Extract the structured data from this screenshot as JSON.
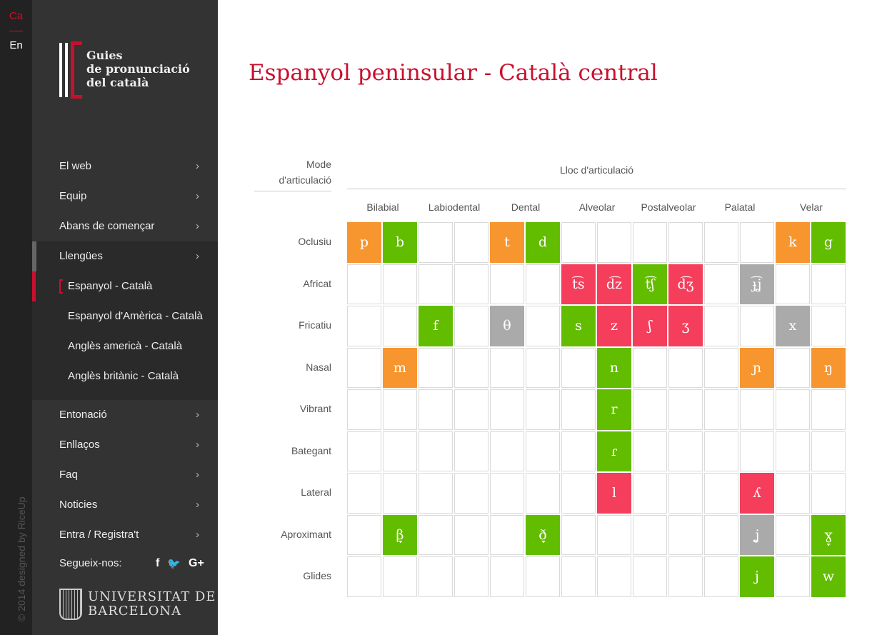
{
  "languages": [
    {
      "label": "Ca",
      "active": true
    },
    {
      "label": "En",
      "active": false
    }
  ],
  "copyright": "© 2014 designed by RiceUp",
  "logo": {
    "line1": "Guies",
    "line2": "de pronunciació",
    "line3": "del català"
  },
  "nav": [
    {
      "label": "El web"
    },
    {
      "label": "Equip"
    },
    {
      "label": "Abans de començar"
    },
    {
      "label": "Llengües"
    }
  ],
  "subnav": [
    {
      "label": "Espanyol - Català",
      "active": true
    },
    {
      "label": "Espanyol d'Amèrica - Català"
    },
    {
      "label": "Anglès americà - Català"
    },
    {
      "label": "Anglès britànic - Català"
    }
  ],
  "nav2": [
    {
      "label": "Entonació"
    },
    {
      "label": "Enllaços"
    },
    {
      "label": "Faq"
    },
    {
      "label": "Noticies"
    },
    {
      "label": "Entra / Registra't"
    }
  ],
  "follow": "Segueix-nos:",
  "social": {
    "facebook": "f",
    "twitter": "🐦",
    "google": "G+"
  },
  "university": {
    "line1": "UNIVERSITAT DE",
    "line2": "BARCELONA"
  },
  "title": "Espanyol peninsular - Català central",
  "table": {
    "mode_label": "Mode d'articulació",
    "place_label": "Lloc d'articulació",
    "columns": [
      "Bilabial",
      "Labiodental",
      "Dental",
      "Alveolar",
      "Postalveolar",
      "Palatal",
      "Velar"
    ],
    "colors": {
      "o": "#f7962f",
      "g": "#62bd00",
      "r": "#f43e5c",
      "y": "#aaaaaa"
    },
    "rows": [
      {
        "label": "Oclusiu",
        "cells": [
          [
            "p",
            "o"
          ],
          [
            "b",
            "g"
          ],
          null,
          null,
          [
            "t",
            "o"
          ],
          [
            "d",
            "g"
          ],
          null,
          null,
          null,
          null,
          null,
          null,
          [
            "k",
            "o"
          ],
          [
            "g",
            "g"
          ]
        ]
      },
      {
        "label": "Africat",
        "cells": [
          null,
          null,
          null,
          null,
          null,
          null,
          [
            "t͡s",
            "r"
          ],
          [
            "d͡z",
            "r"
          ],
          [
            "t͡ʃ",
            "g"
          ],
          [
            "d͡ʒ",
            "r"
          ],
          null,
          [
            "ɟ͡ʝ",
            "y"
          ],
          null,
          null
        ]
      },
      {
        "label": "Fricatiu",
        "cells": [
          null,
          null,
          [
            "f",
            "g"
          ],
          null,
          [
            "θ",
            "y"
          ],
          null,
          [
            "s",
            "g"
          ],
          [
            "z",
            "r"
          ],
          [
            "ʃ",
            "r"
          ],
          [
            "ʒ",
            "r"
          ],
          null,
          null,
          [
            "x",
            "y"
          ],
          null
        ]
      },
      {
        "label": "Nasal",
        "cells": [
          null,
          [
            "m",
            "o"
          ],
          null,
          null,
          null,
          null,
          null,
          [
            "n",
            "g"
          ],
          null,
          null,
          null,
          [
            "ɲ",
            "o"
          ],
          null,
          [
            "ŋ",
            "o"
          ]
        ]
      },
      {
        "label": "Vibrant",
        "cells": [
          null,
          null,
          null,
          null,
          null,
          null,
          null,
          [
            "r",
            "g"
          ],
          null,
          null,
          null,
          null,
          null,
          null
        ]
      },
      {
        "label": "Bategant",
        "cells": [
          null,
          null,
          null,
          null,
          null,
          null,
          null,
          [
            "ɾ",
            "g"
          ],
          null,
          null,
          null,
          null,
          null,
          null
        ]
      },
      {
        "label": "Lateral",
        "cells": [
          null,
          null,
          null,
          null,
          null,
          null,
          null,
          [
            "l",
            "r"
          ],
          null,
          null,
          null,
          [
            "ʎ",
            "r"
          ],
          null,
          null
        ]
      },
      {
        "label": "Aproximant",
        "cells": [
          null,
          [
            "β̞",
            "g"
          ],
          null,
          null,
          null,
          [
            "ð̞",
            "g"
          ],
          null,
          null,
          null,
          null,
          null,
          [
            "ʝ̞",
            "y"
          ],
          null,
          [
            "ɣ̞",
            "g"
          ]
        ]
      },
      {
        "label": "Glides",
        "cells": [
          null,
          null,
          null,
          null,
          null,
          null,
          null,
          null,
          null,
          null,
          null,
          [
            "j",
            "g"
          ],
          null,
          [
            "w",
            "g"
          ]
        ]
      }
    ]
  }
}
